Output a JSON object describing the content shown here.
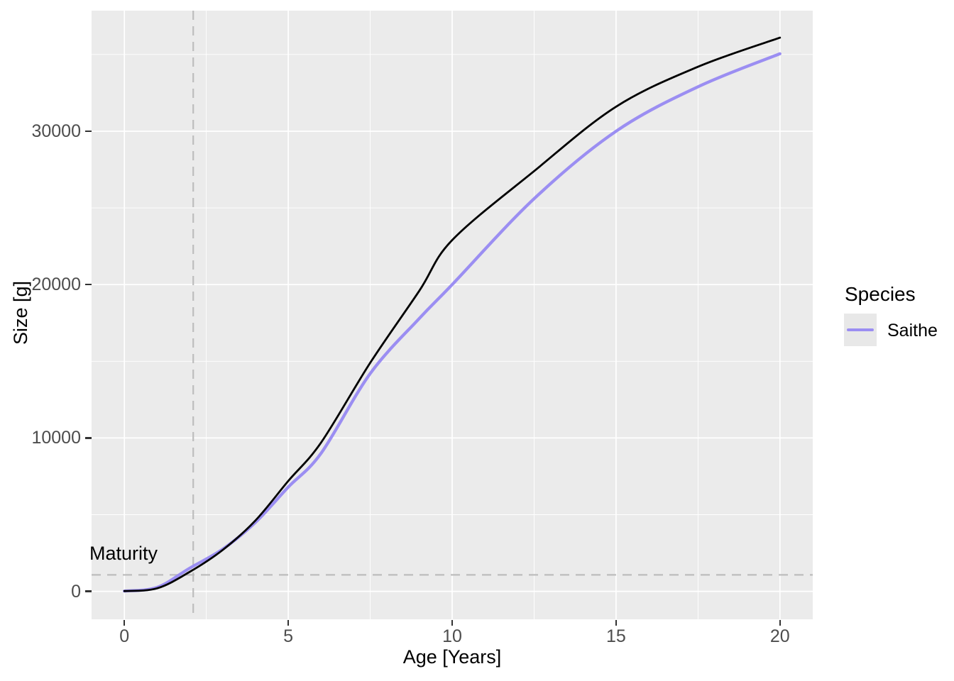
{
  "chart_data": {
    "type": "line",
    "title": "",
    "xlabel": "Age [Years]",
    "ylabel": "Size [g]",
    "x_ticks": [
      0,
      5,
      10,
      15,
      20
    ],
    "x_minor_ticks": [
      2.5,
      7.5,
      12.5,
      17.5
    ],
    "y_ticks": [
      0,
      10000,
      20000,
      30000
    ],
    "y_minor_ticks": [
      5000,
      15000,
      25000,
      35000
    ],
    "x_range": [
      -1,
      21
    ],
    "y_range": [
      -1820,
      37860
    ],
    "grid": true,
    "legend_position": "right",
    "annotations": {
      "maturity_label": "Maturity",
      "maturity_age": 2.1,
      "maturity_size": 1076
    },
    "series": [
      {
        "name": "Saithe",
        "color": "#9b8ef2",
        "width": 4.3,
        "points": [
          [
            0,
            20
          ],
          [
            1,
            260
          ],
          [
            2,
            1520
          ],
          [
            3,
            2750
          ],
          [
            4,
            4500
          ],
          [
            5,
            6800
          ],
          [
            6,
            9000
          ],
          [
            7.5,
            14200
          ],
          [
            9,
            17800
          ],
          [
            10,
            20000
          ],
          [
            12.5,
            25600
          ],
          [
            15,
            30000
          ],
          [
            17.5,
            32900
          ],
          [
            20,
            35050
          ]
        ]
      },
      {
        "name": "",
        "color": "#000000",
        "width": 2.8,
        "points": [
          [
            0,
            20
          ],
          [
            1,
            200
          ],
          [
            2,
            1280
          ],
          [
            3,
            2700
          ],
          [
            4,
            4620
          ],
          [
            5,
            7200
          ],
          [
            6,
            9700
          ],
          [
            7.5,
            14900
          ],
          [
            9,
            19600
          ],
          [
            10,
            22900
          ],
          [
            12.5,
            27400
          ],
          [
            15,
            31600
          ],
          [
            17.5,
            34200
          ],
          [
            20,
            36100
          ]
        ]
      }
    ]
  },
  "legend": {
    "title": "Species",
    "items": [
      {
        "label": "Saithe",
        "color": "#9b8ef2"
      }
    ]
  },
  "colors": {
    "panel_background": "#ebebeb",
    "gridline": "#ffffff",
    "dashed_line": "#bdbdbd",
    "tick_mark": "#333333",
    "tick_text": "#4d4d4d",
    "title_text": "#000000",
    "legend_key_background": "#e8e8e8"
  }
}
